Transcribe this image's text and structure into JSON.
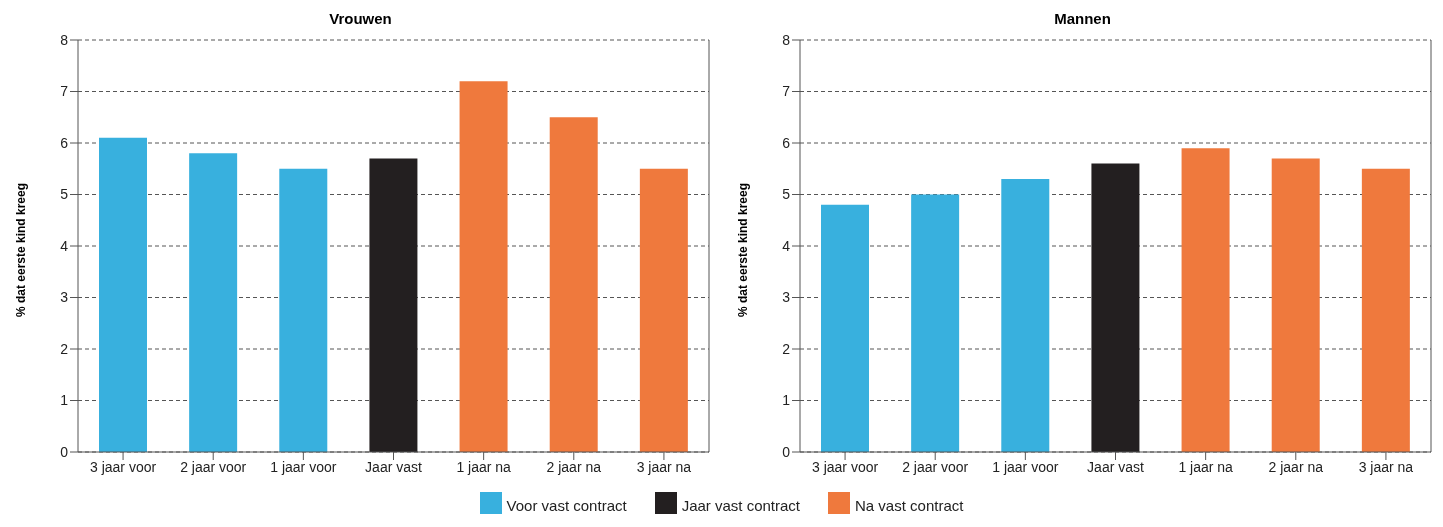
{
  "chart_data": [
    {
      "type": "bar",
      "title": "Vrouwen",
      "ylabel": "% dat eerste kind kreeg",
      "categories": [
        "3 jaar voor",
        "2 jaar voor",
        "1 jaar voor",
        "Jaar vast",
        "1 jaar na",
        "2 jaar na",
        "3 jaar na"
      ],
      "stacked": true,
      "series": [
        {
          "name": "Voor vast contract",
          "color": "#38b0de",
          "values": [
            6.1,
            5.8,
            5.5,
            null,
            null,
            null,
            null
          ]
        },
        {
          "name": "Jaar vast contract",
          "color": "#231f20",
          "values": [
            null,
            null,
            null,
            5.7,
            null,
            null,
            null
          ]
        },
        {
          "name": "Na vast contract",
          "color": "#ef793d",
          "values": [
            null,
            null,
            null,
            null,
            7.2,
            6.5,
            5.5
          ]
        }
      ],
      "ylim": [
        0,
        8
      ],
      "yticks": [
        0,
        1,
        2,
        3,
        4,
        5,
        6,
        7,
        8
      ],
      "grid": "y",
      "legend": "bottom"
    },
    {
      "type": "bar",
      "title": "Mannen",
      "ylabel": "% dat eerste kind kreeg",
      "categories": [
        "3 jaar voor",
        "2 jaar voor",
        "1 jaar voor",
        "Jaar vast",
        "1 jaar na",
        "2 jaar na",
        "3 jaar na"
      ],
      "stacked": true,
      "series": [
        {
          "color": "#38b0de",
          "values": [
            4.8,
            5.0,
            5.3,
            null,
            null,
            null,
            null
          ]
        },
        {
          "color": "#231f20",
          "values": [
            null,
            null,
            null,
            5.6,
            null,
            null,
            null
          ]
        },
        {
          "color": "#ef793d",
          "values": [
            null,
            null,
            null,
            null,
            5.9,
            5.7,
            5.5
          ]
        }
      ],
      "ylim": [
        0,
        8
      ],
      "yticks": [
        0,
        1,
        2,
        3,
        4,
        5,
        6,
        7,
        8
      ],
      "grid": "y"
    }
  ]
}
